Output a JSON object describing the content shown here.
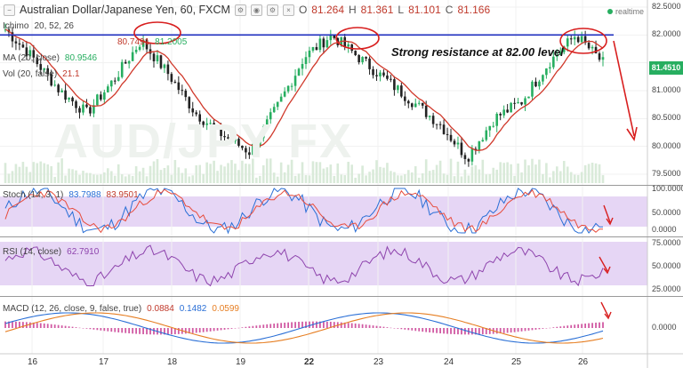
{
  "header": {
    "title": "Australian Dollar/Japanese Yen, 60, FXCM",
    "ohlc": [
      {
        "label": "O",
        "value": "81.264"
      },
      {
        "label": "H",
        "value": "81.361"
      },
      {
        "label": "L",
        "value": "81.101"
      },
      {
        "label": "C",
        "value": "81.166"
      }
    ],
    "realtime": "realtime"
  },
  "legends": {
    "ichimoku_label": "Ichimo",
    "ichimoku_params": "20, 52, 26",
    "ichimoku_value": "80.7491",
    "ichimoku_value2": "81.2005",
    "ma_label": "MA (20, close)",
    "ma_value": "80.9546",
    "vol_label": "Vol (20, false)",
    "vol_value": "21.1"
  },
  "annotation": "Strong resistance at 82.00 level",
  "watermark": "AUD/JPY FX",
  "price_tag": "81.4510",
  "price_axis": [
    "82.5000",
    "82.0000",
    "81.5000",
    "81.0000",
    "80.5000",
    "80.0000",
    "79.5000"
  ],
  "date_axis": [
    "16",
    "17",
    "18",
    "19",
    "22",
    "23",
    "24",
    "25",
    "26"
  ],
  "stoch": {
    "label": "Stoch (14, 3, 1)",
    "k": "83.7988",
    "d": "83.9501",
    "axis": [
      "100.0000",
      "50.0000",
      "0.0000"
    ]
  },
  "rsi": {
    "label": "RSI (14, close)",
    "value": "62.7910",
    "axis": [
      "75.0000",
      "50.0000",
      "25.0000"
    ]
  },
  "macd": {
    "label": "MACD (12, 26, close, 9, false, true)",
    "hist": "0.0884",
    "macd": "0.1482",
    "signal": "0.0599",
    "axis": [
      "0.0000"
    ]
  },
  "colors": {
    "bull": "#27ae60",
    "bear": "#222222",
    "ma": "#d0392b",
    "resistance": "#1f2fbf",
    "arrow": "#d81e1e",
    "stoch_k": "#2a6fd6",
    "stoch_d": "#e74c3c",
    "rsi": "#8e44ad",
    "macd": "#2a6fd6",
    "signal": "#e67e22",
    "hist": "#d15aa3",
    "band": "#e6d6f5"
  },
  "chart_data": {
    "type": "candlestick",
    "instrument": "AUD/JPY",
    "timeframe": "60",
    "ylim": [
      79.5,
      82.5
    ],
    "resistance": 82.0,
    "x": [
      "16",
      "17",
      "18",
      "19",
      "22",
      "23",
      "24",
      "25",
      "26"
    ],
    "close_path": [
      82.1,
      81.6,
      81.0,
      80.6,
      81.2,
      81.9,
      81.3,
      80.6,
      80.2,
      79.9,
      80.7,
      81.6,
      82.0,
      81.6,
      81.2,
      80.8,
      80.4,
      79.8,
      80.5,
      80.8,
      81.5,
      82.0,
      81.5
    ]
  }
}
